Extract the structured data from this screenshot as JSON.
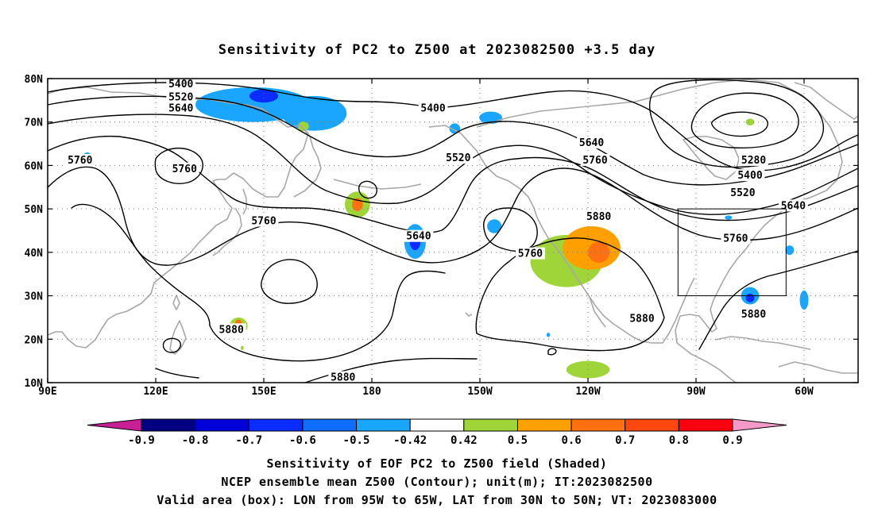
{
  "title": "Sensitivity of PC2 to Z500 at 2023082500 +3.5 day",
  "map": {
    "lat_ticks": [
      "80N",
      "70N",
      "60N",
      "50N",
      "40N",
      "30N",
      "20N",
      "10N"
    ],
    "lon_ticks": [
      "90E",
      "120E",
      "150E",
      "180",
      "150W",
      "120W",
      "90W",
      "60W"
    ],
    "lon_range": [
      90,
      315
    ],
    "lat_range": [
      10,
      80
    ],
    "grid": "dotted",
    "coastline_color": "#a8a8a8",
    "contour_labels": [
      {
        "text": "5400",
        "lon": 127,
        "lat": 78.5
      },
      {
        "text": "5520",
        "lon": 127,
        "lat": 75.5
      },
      {
        "text": "5640",
        "lon": 127,
        "lat": 73
      },
      {
        "text": "5760",
        "lon": 99,
        "lat": 61
      },
      {
        "text": "5760",
        "lon": 128,
        "lat": 59
      },
      {
        "text": "5760",
        "lon": 150,
        "lat": 47
      },
      {
        "text": "5880",
        "lon": 141,
        "lat": 22
      },
      {
        "text": "5880",
        "lon": 172,
        "lat": 11
      },
      {
        "text": "5400",
        "lon": 197,
        "lat": 73
      },
      {
        "text": "5520",
        "lon": 204,
        "lat": 61.5
      },
      {
        "text": "5640",
        "lon": 193,
        "lat": 43.5
      },
      {
        "text": "5640",
        "lon": 241,
        "lat": 65
      },
      {
        "text": "5760",
        "lon": 242,
        "lat": 61
      },
      {
        "text": "5760",
        "lon": 224,
        "lat": 39.5
      },
      {
        "text": "5880",
        "lon": 243,
        "lat": 48
      },
      {
        "text": "5880",
        "lon": 255,
        "lat": 24.5
      },
      {
        "text": "5280",
        "lon": 286,
        "lat": 61
      },
      {
        "text": "5400",
        "lon": 285,
        "lat": 57.5
      },
      {
        "text": "5520",
        "lon": 283,
        "lat": 53.5
      },
      {
        "text": "5640",
        "lon": 297,
        "lat": 50.5
      },
      {
        "text": "5760",
        "lon": 281,
        "lat": 43
      },
      {
        "text": "5880",
        "lon": 286,
        "lat": 25.5
      }
    ],
    "valid_box": {
      "lon": [
        265,
        295
      ],
      "lat": [
        30,
        50
      ]
    },
    "sensitivity_patches": [
      {
        "lon": 147,
        "lat": 74,
        "rx": 16,
        "ry": 4,
        "value": -0.45
      },
      {
        "lon": 150,
        "lat": 76,
        "rx": 4,
        "ry": 1.5,
        "value": -0.65
      },
      {
        "lon": 164,
        "lat": 72,
        "rx": 9,
        "ry": 4,
        "value": -0.45
      },
      {
        "lon": 101,
        "lat": 62,
        "rx": 1.2,
        "ry": 1,
        "value": -0.45
      },
      {
        "lon": 176,
        "lat": 51,
        "rx": 3.5,
        "ry": 3,
        "value": 0.45
      },
      {
        "lon": 176,
        "lat": 51,
        "rx": 1.5,
        "ry": 1.5,
        "value": 0.65
      },
      {
        "lon": 161,
        "lat": 69,
        "rx": 1.5,
        "ry": 1.1,
        "value": 0.45
      },
      {
        "lon": 192,
        "lat": 42.5,
        "rx": 3,
        "ry": 4,
        "value": -0.45
      },
      {
        "lon": 192,
        "lat": 42.5,
        "rx": 1.5,
        "ry": 2,
        "value": -0.65
      },
      {
        "lon": 203,
        "lat": 68.5,
        "rx": 1.5,
        "ry": 1.2,
        "value": -0.45
      },
      {
        "lon": 213,
        "lat": 71,
        "rx": 3.2,
        "ry": 1.4,
        "value": -0.45
      },
      {
        "lon": 214,
        "lat": 46,
        "rx": 2,
        "ry": 1.6,
        "value": -0.45
      },
      {
        "lon": 234,
        "lat": 38,
        "rx": 10,
        "ry": 6,
        "value": 0.45
      },
      {
        "lon": 241,
        "lat": 41,
        "rx": 8,
        "ry": 5,
        "value": 0.55
      },
      {
        "lon": 243,
        "lat": 40,
        "rx": 3,
        "ry": 2.4,
        "value": 0.65
      },
      {
        "lon": 240,
        "lat": 13,
        "rx": 6,
        "ry": 2,
        "value": 0.45
      },
      {
        "lon": 285,
        "lat": 70,
        "rx": 1.2,
        "ry": 0.8,
        "value": 0.45
      },
      {
        "lon": 285,
        "lat": 30,
        "rx": 2.5,
        "ry": 2,
        "value": -0.45
      },
      {
        "lon": 285,
        "lat": 29.5,
        "rx": 1.2,
        "ry": 1,
        "value": -0.7
      },
      {
        "lon": 296,
        "lat": 40.5,
        "rx": 1.2,
        "ry": 1.1,
        "value": -0.45
      },
      {
        "lon": 300,
        "lat": 29,
        "rx": 1.2,
        "ry": 2.2,
        "value": -0.45
      },
      {
        "lon": 143,
        "lat": 23,
        "rx": 2.5,
        "ry": 2,
        "value": 0.45
      },
      {
        "lon": 143,
        "lat": 23.5,
        "rx": 1,
        "ry": 1,
        "value": 0.65
      },
      {
        "lon": 279,
        "lat": 48,
        "rx": 1,
        "ry": 0.5,
        "value": -0.45
      },
      {
        "lon": 229,
        "lat": 21,
        "rx": 0.5,
        "ry": 0.5,
        "value": -0.45
      },
      {
        "lon": 144,
        "lat": 18,
        "rx": 0.4,
        "ry": 0.5,
        "value": 0.45
      }
    ]
  },
  "colorbar": {
    "labels": [
      "-0.9",
      "-0.8",
      "-0.7",
      "-0.6",
      "-0.5",
      "-0.42",
      "0.42",
      "0.5",
      "0.6",
      "0.7",
      "0.8",
      "0.9"
    ],
    "colors": [
      "#000080",
      "#0000d8",
      "#0a2cff",
      "#0e6cff",
      "#1aa6ff",
      "#ffffff",
      "#a0d53a",
      "#ffa000",
      "#ff7010",
      "#ff4810",
      "#ff0010"
    ],
    "low_color": "#c81e96",
    "high_color": "#f59ac8"
  },
  "caption": {
    "line1": "Sensitivity of EOF PC2 to Z500 field (Shaded)",
    "line2": "NCEP ensemble mean Z500 (Contour); unit(m); IT:2023082500",
    "line3": "Valid area (box): LON from 95W to 65W, LAT from 30N to 50N; VT: 2023083000"
  }
}
